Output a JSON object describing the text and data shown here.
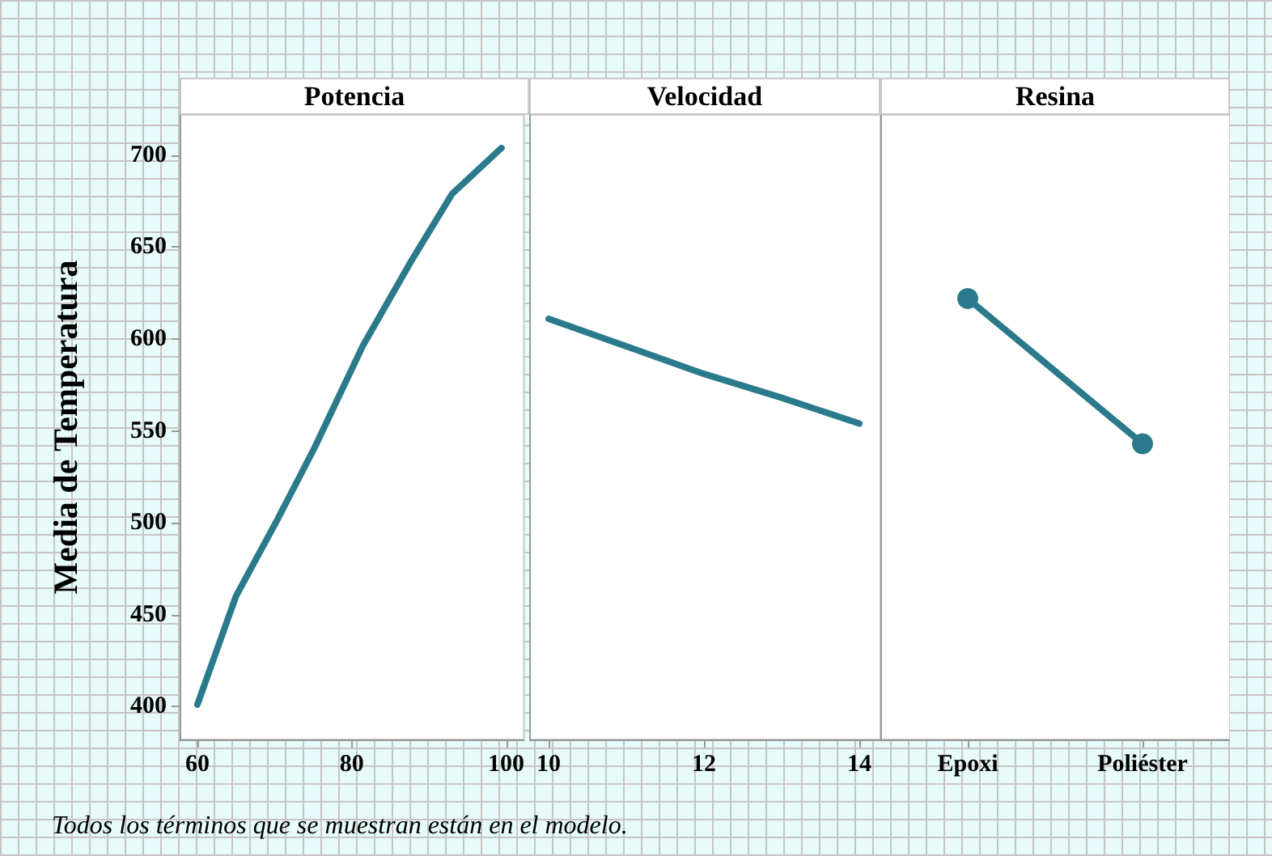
{
  "chart_data": [
    {
      "type": "line",
      "title": "Potencia",
      "ylabel": "Media de Temperatura",
      "xlim": [
        57.7,
        102.3
      ],
      "xticks": [
        60,
        80,
        100
      ],
      "ylim": [
        382,
        722
      ],
      "yticks": [
        400,
        450,
        500,
        550,
        600,
        650,
        700
      ],
      "marker": "none",
      "series": [
        {
          "color": "#2a7a8c",
          "x": [
            60,
            65,
            70.4,
            75.2,
            81.4,
            87.5,
            93,
            99.4
          ],
          "values": [
            401,
            460,
            502,
            541,
            596,
            641,
            679,
            704
          ]
        }
      ],
      "annotations": [
        "Todos los términos que se muestran están en el modelo."
      ]
    },
    {
      "type": "line",
      "title": "Velocidad",
      "xlim": [
        9.75,
        14.27
      ],
      "xticks": [
        10,
        12,
        14
      ],
      "ylim": [
        382,
        722
      ],
      "tick_labels": "x",
      "marker": "none",
      "series": [
        {
          "color": "#2a7a8c",
          "x": [
            10,
            11,
            12,
            13,
            14
          ],
          "values": [
            611,
            596,
            581,
            568,
            554
          ]
        }
      ]
    },
    {
      "type": "line",
      "title": "Resina",
      "categories": [
        "Epoxi",
        "Poliéster"
      ],
      "ylim": [
        382,
        722
      ],
      "tick_labels": "x",
      "marker": "circle",
      "series": [
        {
          "color": "#2a7a8c",
          "values": [
            622,
            543
          ]
        }
      ]
    }
  ]
}
